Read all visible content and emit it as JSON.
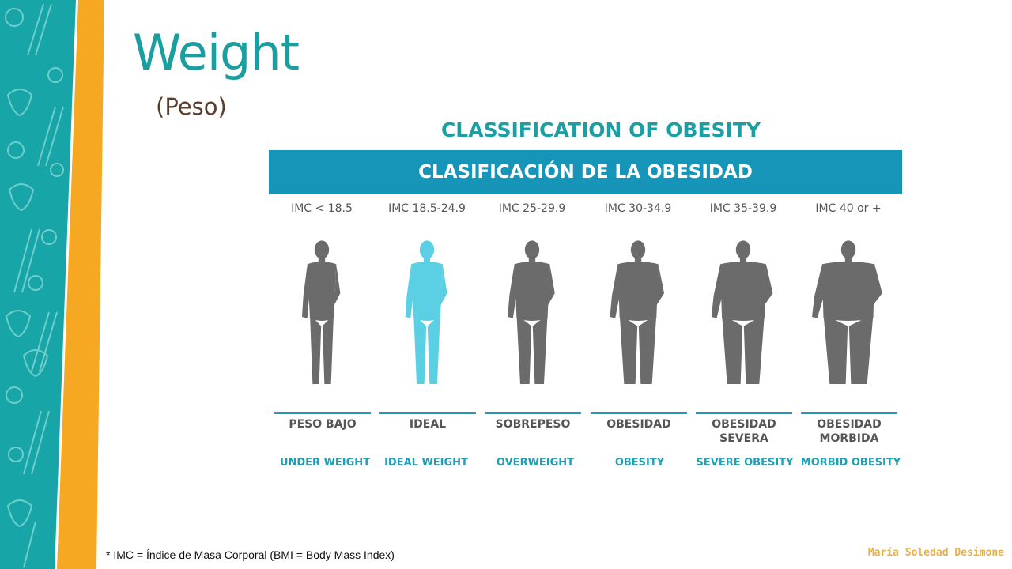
{
  "slide": {
    "title": "Weight",
    "subtitle": "(Peso)"
  },
  "chart": {
    "heading": "CLASSIFICATION OF OBESITY",
    "banner": "CLASIFICACIÓN DE LA OBESIDAD",
    "highlight_color": "#5bd0e4",
    "figure_color": "#6b6b6b",
    "categories": [
      {
        "imc": "IMC < 18.5",
        "es_lines": [
          "PESO BAJO"
        ],
        "en": "UNDER WEIGHT"
      },
      {
        "imc": "IMC 18.5-24.9",
        "es_lines": [
          "IDEAL"
        ],
        "en": "IDEAL WEIGHT",
        "highlighted": true
      },
      {
        "imc": "IMC 25-29.9",
        "es_lines": [
          "SOBREPESO"
        ],
        "en": "OVERWEIGHT"
      },
      {
        "imc": "IMC 30-34.9",
        "es_lines": [
          "OBESIDAD"
        ],
        "en": "OBESITY"
      },
      {
        "imc": "IMC 35-39.9",
        "es_lines": [
          "OBESIDAD",
          "SEVERA"
        ],
        "en": "SEVERE OBESITY"
      },
      {
        "imc": "IMC 40  or +",
        "es_lines": [
          "OBESIDAD",
          "MORBIDA"
        ],
        "en": "MORBID OBESITY"
      }
    ]
  },
  "footnote": "* IMC = Índice de Masa Corporal (BMI = Body Mass Index)",
  "author": "María Soledad Desimone"
}
